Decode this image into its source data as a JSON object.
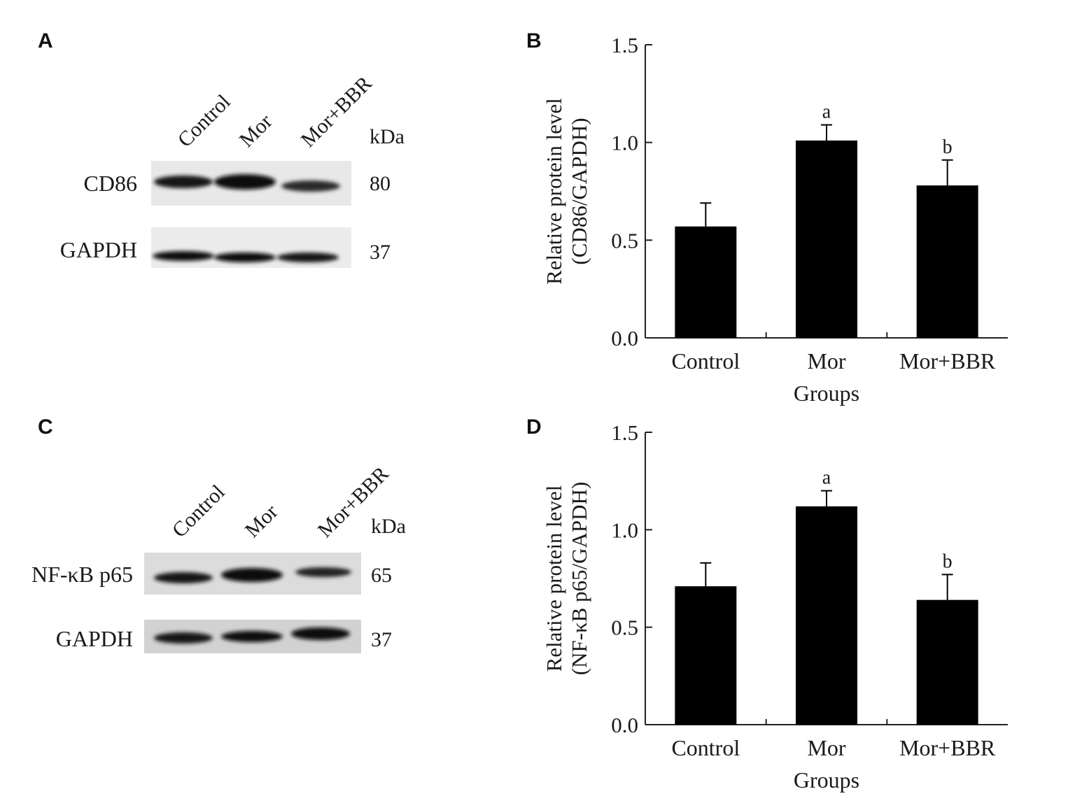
{
  "panels": {
    "a": {
      "letter": "A"
    },
    "b": {
      "letter": "B"
    },
    "c": {
      "letter": "C"
    },
    "d": {
      "letter": "D"
    }
  },
  "blot_a": {
    "lanes": [
      "Control",
      "Mor",
      "Mor+BBR"
    ],
    "unit": "kDa",
    "rows": [
      {
        "label": "CD86",
        "kda": "80"
      },
      {
        "label": "GAPDH",
        "kda": "37"
      }
    ]
  },
  "blot_c": {
    "lanes": [
      "Control",
      "Mor",
      "Mor+BBR"
    ],
    "unit": "kDa",
    "rows": [
      {
        "label": "NF-κB p65",
        "kda": "65"
      },
      {
        "label": "GAPDH",
        "kda": "37"
      }
    ]
  },
  "chart_data": [
    {
      "type": "bar",
      "panel": "B",
      "categories": [
        "Control",
        "Mor",
        "Mor+BBR"
      ],
      "values": [
        0.57,
        1.01,
        0.78
      ],
      "errors": [
        0.12,
        0.08,
        0.13
      ],
      "annotations": [
        "",
        "a",
        "b"
      ],
      "ylabel_line1": "Relative protein level",
      "ylabel_line2": "(CD86/GAPDH)",
      "xlabel": "Groups",
      "ylim": [
        0,
        1.5
      ],
      "yticks": [
        "0.0",
        "0.5",
        "1.0",
        "1.5"
      ],
      "bar_color": "#000000"
    },
    {
      "type": "bar",
      "panel": "D",
      "categories": [
        "Control",
        "Mor",
        "Mor+BBR"
      ],
      "values": [
        0.71,
        1.12,
        0.64
      ],
      "errors": [
        0.12,
        0.08,
        0.13
      ],
      "annotations": [
        "",
        "a",
        "b"
      ],
      "ylabel_line1": "Relative protein level",
      "ylabel_line2": "(NF-κB p65/GAPDH)",
      "xlabel": "Groups",
      "ylim": [
        0,
        1.5
      ],
      "yticks": [
        "0.0",
        "0.5",
        "1.0",
        "1.5"
      ],
      "bar_color": "#000000"
    }
  ]
}
